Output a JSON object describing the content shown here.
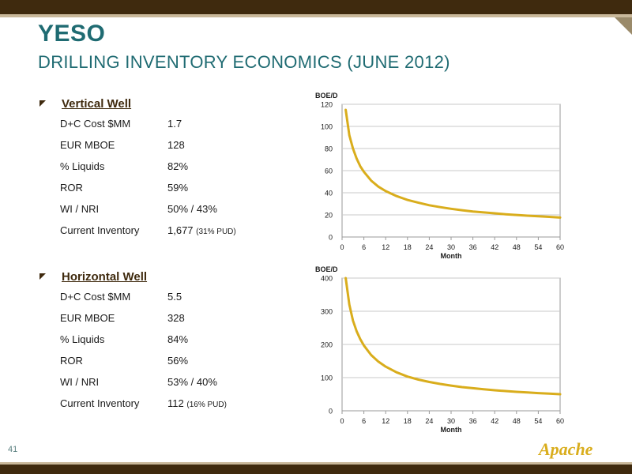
{
  "slide": {
    "title": "YESO",
    "subtitle": "DRILLING INVENTORY ECONOMICS (JUNE 2012)",
    "page_number": "41",
    "logo_text": "Apache"
  },
  "vertical": {
    "heading": "Vertical Well",
    "rows": [
      {
        "label": "D+C Cost $MM",
        "value": "1.7",
        "note": ""
      },
      {
        "label": "EUR MBOE",
        "value": "128",
        "note": ""
      },
      {
        "label": "% Liquids",
        "value": "82%",
        "note": ""
      },
      {
        "label": "ROR",
        "value": "59%",
        "note": ""
      },
      {
        "label": "WI / NRI",
        "value": "50% / 43%",
        "note": ""
      },
      {
        "label": "Current Inventory",
        "value": "1,677",
        "note": "(31% PUD)"
      }
    ]
  },
  "horizontal": {
    "heading": "Horizontal Well",
    "rows": [
      {
        "label": "D+C Cost $MM",
        "value": "5.5",
        "note": ""
      },
      {
        "label": "EUR MBOE",
        "value": "328",
        "note": ""
      },
      {
        "label": "% Liquids",
        "value": "84%",
        "note": ""
      },
      {
        "label": "ROR",
        "value": "56%",
        "note": ""
      },
      {
        "label": "WI / NRI",
        "value": "53% / 40%",
        "note": ""
      },
      {
        "label": "Current Inventory",
        "value": "112",
        "note": "(16% PUD)"
      }
    ]
  },
  "colors": {
    "accent_teal": "#1f6b72",
    "bar_brown": "#3f2a0e",
    "curve_gold": "#d9ad1c"
  },
  "chart_data": [
    {
      "type": "line",
      "title": "",
      "xlabel": "Month",
      "ylabel": "BOE/D",
      "xlim": [
        0,
        60
      ],
      "ylim": [
        0,
        120
      ],
      "xticks": [
        0,
        6,
        12,
        18,
        24,
        30,
        36,
        42,
        48,
        54,
        60
      ],
      "yticks": [
        0,
        20,
        40,
        60,
        80,
        100,
        120
      ],
      "grid": true,
      "series": [
        {
          "x": [
            1,
            2,
            3,
            4,
            5,
            6,
            8,
            10,
            12,
            15,
            18,
            21,
            24,
            27,
            30,
            33,
            36,
            39,
            42,
            45,
            48,
            51,
            54,
            57,
            60
          ],
          "y": [
            115,
            92,
            80,
            71,
            64,
            59,
            51,
            45.5,
            41.5,
            37,
            33.5,
            31,
            28.7,
            27,
            25.5,
            24.2,
            23.1,
            22.2,
            21.4,
            20.6,
            19.9,
            19.3,
            18.7,
            18.2,
            17.6
          ]
        }
      ]
    },
    {
      "type": "line",
      "title": "",
      "xlabel": "Month",
      "ylabel": "BOE/D",
      "xlim": [
        0,
        60
      ],
      "ylim": [
        0,
        400
      ],
      "xticks": [
        0,
        6,
        12,
        18,
        24,
        30,
        36,
        42,
        48,
        54,
        60
      ],
      "yticks": [
        0,
        100,
        200,
        300,
        400
      ],
      "grid": true,
      "series": [
        {
          "x": [
            1,
            2,
            3,
            4,
            5,
            6,
            8,
            10,
            12,
            15,
            18,
            21,
            24,
            27,
            30,
            33,
            36,
            39,
            42,
            45,
            48,
            51,
            54,
            57,
            60
          ],
          "y": [
            400,
            320,
            272,
            240,
            216,
            197,
            168,
            148,
            133,
            116,
            103,
            94,
            87,
            81,
            76,
            71.5,
            68,
            64.8,
            62,
            59.5,
            57.2,
            55.2,
            53.4,
            51.7,
            50
          ]
        }
      ]
    }
  ]
}
